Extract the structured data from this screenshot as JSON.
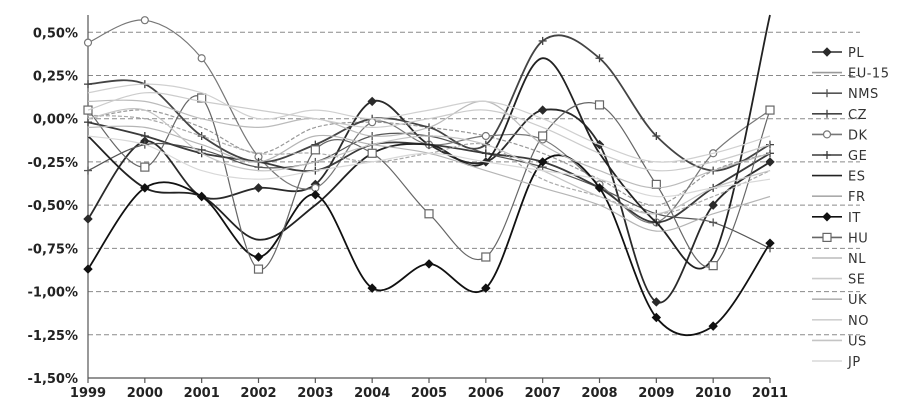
{
  "chart_data": {
    "type": "line",
    "title": "",
    "xlabel": "",
    "ylabel": "",
    "x": [
      "1999",
      "2000",
      "2001",
      "2002",
      "2003",
      "2004",
      "2005",
      "2006",
      "2007",
      "2008",
      "2009",
      "2010",
      "2011"
    ],
    "y_ticks": [
      "0,50%",
      "0,25%",
      "0,00%",
      "-0,25%",
      "-0,50%",
      "-0,75%",
      "-1,00%",
      "-1,25%",
      "-1,50%"
    ],
    "ylim": [
      -1.5,
      0.6
    ],
    "grid": true,
    "legend_position": "right",
    "series": [
      {
        "name": "PL",
        "color": "#2a2a2a",
        "marker": "diamond",
        "values": [
          -0.58,
          -0.13,
          -0.45,
          -0.4,
          -0.38,
          0.1,
          -0.15,
          -0.25,
          0.05,
          -0.15,
          -1.06,
          -0.5,
          -0.25
        ]
      },
      {
        "name": "EU-15",
        "color": "#999999",
        "marker": "none",
        "values": [
          0.0,
          0.05,
          -0.05,
          -0.2,
          -0.05,
          -0.02,
          -0.05,
          -0.1,
          -0.2,
          -0.35,
          -0.5,
          -0.3,
          -0.2
        ]
      },
      {
        "name": "NMS",
        "color": "#555555",
        "marker": "plus",
        "values": [
          -0.3,
          -0.15,
          -0.18,
          -0.28,
          -0.25,
          -0.1,
          -0.1,
          -0.2,
          -0.28,
          -0.4,
          -0.55,
          -0.6,
          -0.75
        ]
      },
      {
        "name": "CZ",
        "color": "#444444",
        "marker": "plus",
        "values": [
          0.2,
          0.2,
          -0.1,
          -0.25,
          -0.15,
          0.0,
          -0.05,
          -0.15,
          0.45,
          0.35,
          -0.1,
          -0.3,
          -0.15
        ]
      },
      {
        "name": "DK",
        "color": "#777777",
        "marker": "circle",
        "values": [
          0.44,
          0.57,
          0.35,
          -0.22,
          -0.4,
          -0.02,
          -0.15,
          -0.1,
          -0.12,
          -0.38,
          -0.6,
          -0.2,
          0.05
        ]
      },
      {
        "name": "GE",
        "color": "#3a3a3a",
        "marker": "plus",
        "values": [
          -0.02,
          -0.1,
          -0.2,
          -0.25,
          -0.3,
          -0.15,
          -0.15,
          -0.2,
          -0.25,
          -0.4,
          -0.6,
          -0.4,
          -0.2
        ]
      },
      {
        "name": "ES",
        "color": "#222222",
        "marker": "none",
        "values": [
          -0.1,
          -0.4,
          -0.45,
          -0.7,
          -0.5,
          -0.2,
          -0.15,
          -0.25,
          0.35,
          -0.2,
          -0.6,
          -0.8,
          0.6
        ]
      },
      {
        "name": "FR",
        "color": "#aaaaaa",
        "marker": "none",
        "values": [
          0.02,
          0.0,
          -0.1,
          -0.2,
          -0.2,
          -0.25,
          -0.2,
          -0.15,
          -0.35,
          -0.45,
          -0.55,
          -0.45,
          -0.3
        ]
      },
      {
        "name": "IT",
        "color": "#111111",
        "marker": "diamond",
        "values": [
          -0.87,
          -0.4,
          -0.45,
          -0.8,
          -0.44,
          -0.98,
          -0.84,
          -0.98,
          -0.25,
          -0.4,
          -1.15,
          -1.2,
          -0.72
        ]
      },
      {
        "name": "HU",
        "color": "#666666",
        "marker": "square",
        "values": [
          0.05,
          -0.28,
          0.12,
          -0.87,
          -0.18,
          -0.2,
          -0.55,
          -0.8,
          -0.1,
          0.08,
          -0.38,
          -0.85,
          0.05
        ]
      },
      {
        "name": "NL",
        "color": "#bbbbbb",
        "marker": "none",
        "values": [
          0.1,
          0.1,
          0.0,
          -0.05,
          0.0,
          -0.1,
          -0.05,
          0.1,
          -0.15,
          -0.3,
          -0.4,
          -0.3,
          -0.2
        ]
      },
      {
        "name": "SE",
        "color": "#cccccc",
        "marker": "none",
        "values": [
          0.05,
          0.15,
          0.1,
          0.05,
          0.0,
          -0.05,
          0.0,
          0.05,
          -0.05,
          -0.2,
          -0.3,
          -0.25,
          -0.15
        ]
      },
      {
        "name": "UK",
        "color": "#b5b5b5",
        "marker": "none",
        "values": [
          -0.05,
          -0.05,
          -0.15,
          -0.25,
          -0.1,
          -0.15,
          -0.2,
          -0.3,
          -0.4,
          -0.5,
          -0.65,
          -0.55,
          -0.45
        ]
      },
      {
        "name": "NO",
        "color": "#d0d0d0",
        "marker": "none",
        "values": [
          0.15,
          0.2,
          0.15,
          0.0,
          0.05,
          0.0,
          0.05,
          0.1,
          0.0,
          -0.15,
          -0.25,
          -0.2,
          -0.1
        ]
      },
      {
        "name": "US",
        "color": "#c4c4c4",
        "marker": "none",
        "values": [
          0.0,
          0.05,
          -0.2,
          -0.3,
          -0.25,
          -0.15,
          -0.1,
          -0.15,
          -0.3,
          -0.45,
          -0.55,
          -0.4,
          -0.3
        ]
      },
      {
        "name": "JP",
        "color": "#d8d8d8",
        "marker": "none",
        "values": [
          -0.1,
          -0.15,
          -0.3,
          -0.35,
          -0.3,
          -0.25,
          -0.2,
          -0.25,
          -0.3,
          -0.35,
          -0.45,
          -0.4,
          -0.35
        ]
      }
    ]
  }
}
